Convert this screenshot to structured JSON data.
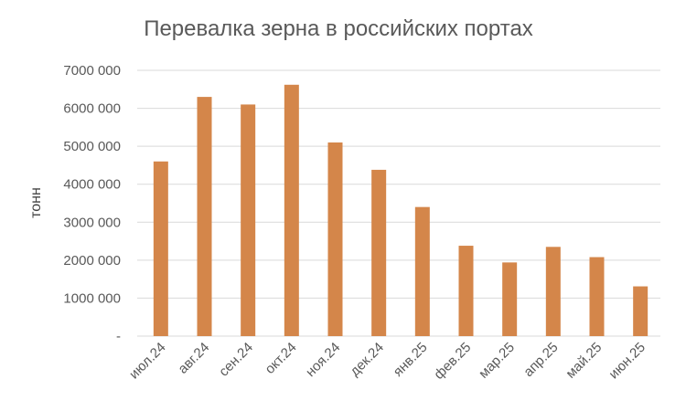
{
  "chart_data": {
    "type": "bar",
    "title": "Перевалка зерна в российских портах",
    "ylabel": "тонн",
    "xlabel": "",
    "categories": [
      "июл.24",
      "авг.24",
      "сен.24",
      "окт.24",
      "ноя.24",
      "дек.24",
      "янв.25",
      "фев.25",
      "мар.25",
      "апр.25",
      "май.25",
      "июн.25"
    ],
    "values": [
      4600000,
      6300000,
      6100000,
      6620000,
      5100000,
      4380000,
      3400000,
      2380000,
      1940000,
      2350000,
      2080000,
      1310000
    ],
    "ylim": [
      0,
      7000000
    ],
    "yticks": [
      0,
      1000000,
      2000000,
      3000000,
      4000000,
      5000000,
      6000000,
      7000000
    ],
    "ytick_labels": [
      "-",
      "1000 000",
      "2000 000",
      "3000 000",
      "4000 000",
      "5000 000",
      "6000 000",
      "7000 000"
    ],
    "grid": true,
    "bar_color": "#D4864A",
    "grid_color": "#D9D9D9"
  }
}
